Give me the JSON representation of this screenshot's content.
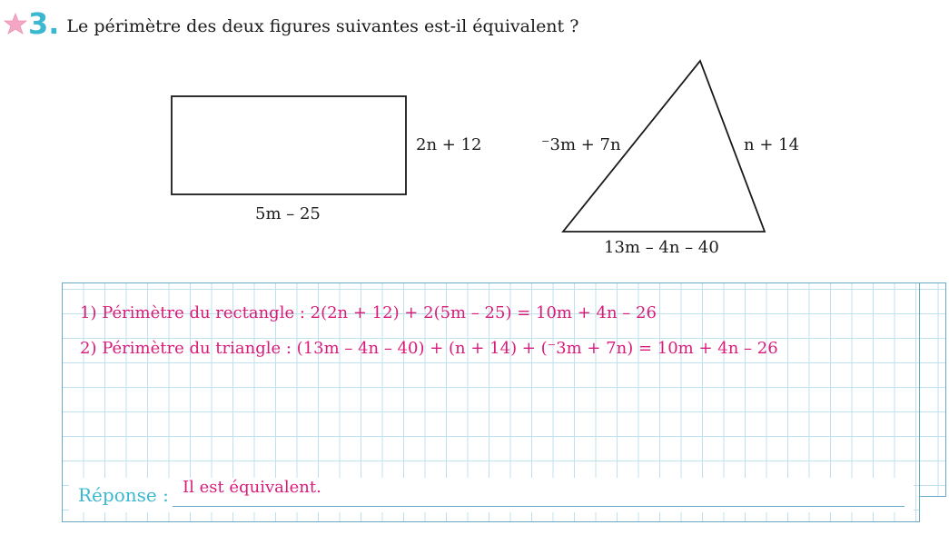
{
  "exercise": {
    "number": "3.",
    "icon": "star-icon",
    "question": "Le périmètre des deux figures suivantes est-il équivalent ?"
  },
  "rectangle": {
    "side_label": "2n + 12",
    "bottom_label": "5m – 25"
  },
  "triangle": {
    "left_label": "⁻3m + 7n",
    "right_label": "n + 14",
    "bottom_label": "13m – 4n – 40"
  },
  "answer_lines": [
    "1)  Périmètre du rectangle : 2(2n + 12) + 2(5m – 25) = 10m + 4n – 26",
    "2)  Périmètre du triangle : (13m – 4n – 40) + (n + 14) + (⁻3m + 7n) = 10m + 4n – 26"
  ],
  "response": {
    "label": "Réponse :",
    "value": "Il est équivalent."
  },
  "colors": {
    "accent_blue": "#3bb8d0",
    "answer_magenta": "#d81b7a",
    "star_pink": "#f4a7c4",
    "grid_line": "#bfe0ef"
  }
}
